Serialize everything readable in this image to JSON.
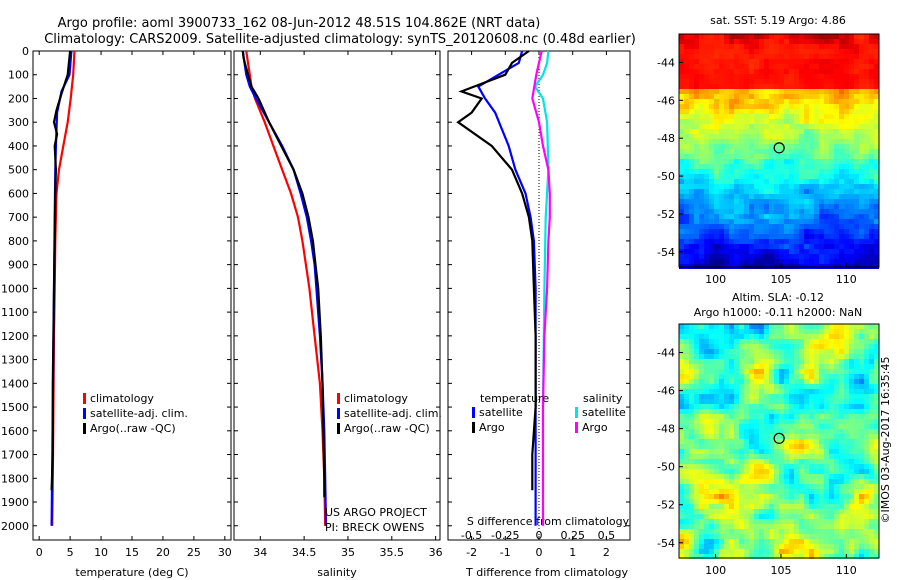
{
  "title_line1": "Argo profile: aoml 3900733_162 08-Jun-2012 48.51S 104.862E (NRT data)",
  "title_line2": "Climatology: CARS2009. Satellite-adjusted climatology: synTS_20120608.nc (0.48d earlier)",
  "watermark": "©IMOS 03-Aug-2017 16:35:45",
  "project_line1": "US ARGO PROJECT",
  "project_line2": "PI: BRECK OWENS",
  "colors": {
    "red": "#ff0000",
    "blue": "#0000ff",
    "black": "#000000",
    "cyan": "#00e5e5",
    "magenta": "#ff00ff"
  },
  "chart_data": [
    {
      "type": "line",
      "name": "temperature",
      "xlabel": "temperature (deg C)",
      "ylabel": "",
      "xlim": [
        -1,
        31
      ],
      "ylim": [
        2060,
        0
      ],
      "xticks": [
        0,
        5,
        10,
        15,
        20,
        25,
        30
      ],
      "yticks": [
        0,
        100,
        200,
        300,
        400,
        500,
        600,
        700,
        800,
        900,
        1000,
        1100,
        1200,
        1300,
        1400,
        1500,
        1600,
        1700,
        1800,
        1900,
        2000
      ],
      "legend": [
        "climatology",
        "satellite-adj. clim.",
        "Argo(..raw -QC)"
      ],
      "legend_placement": "lower-center",
      "series": [
        {
          "name": "climatology",
          "color": "red",
          "depth": [
            0,
            100,
            200,
            300,
            400,
            500,
            600,
            800,
            1000,
            1200,
            1500,
            1800,
            2000
          ],
          "values": [
            5.7,
            5.5,
            5.1,
            4.6,
            3.9,
            3.2,
            2.8,
            2.6,
            2.5,
            2.4,
            2.3,
            2.2,
            2.1
          ]
        },
        {
          "name": "satellite-adj. clim.",
          "color": "blue",
          "depth": [
            0,
            100,
            170,
            260,
            400,
            500,
            700,
            1000,
            1500,
            2000
          ],
          "values": [
            5.2,
            4.9,
            3.6,
            2.9,
            2.7,
            2.6,
            2.5,
            2.4,
            2.2,
            2.0
          ]
        },
        {
          "name": "Argo(..raw -QC)",
          "color": "black",
          "depth": [
            0,
            100,
            180,
            250,
            300,
            350,
            400,
            450,
            500,
            600,
            800,
            1000,
            1400,
            1700,
            1850
          ],
          "values": [
            5.0,
            4.6,
            3.6,
            2.8,
            2.4,
            2.9,
            2.5,
            2.6,
            2.7,
            2.6,
            2.5,
            2.4,
            2.2,
            2.2,
            2.0
          ]
        }
      ]
    },
    {
      "type": "line",
      "name": "salinity",
      "xlabel": "salinity",
      "ylabel": "",
      "xlim": [
        33.7,
        36.05
      ],
      "ylim": [
        2060,
        0
      ],
      "xticks": [
        34,
        34.5,
        35,
        35.5,
        36
      ],
      "xtick_labels": [
        "34",
        "34.5",
        "35",
        "35.5",
        "36"
      ],
      "legend": [
        "climatology",
        "satellite-adj. clim.",
        "Argo(..raw -QC)"
      ],
      "legend_placement": "lower-right",
      "series": [
        {
          "name": "climatology",
          "color": "red",
          "depth": [
            0,
            50,
            100,
            150,
            200,
            300,
            400,
            500,
            600,
            700,
            800,
            900,
            1000,
            1200,
            1400,
            1600,
            1800,
            2000
          ],
          "values": [
            33.84,
            33.86,
            33.88,
            33.9,
            33.94,
            34.05,
            34.15,
            34.25,
            34.35,
            34.43,
            34.48,
            34.52,
            34.56,
            34.62,
            34.68,
            34.71,
            34.73,
            34.74
          ]
        },
        {
          "name": "satellite-adj. clim.",
          "color": "blue",
          "depth": [
            0,
            50,
            100,
            150,
            200,
            300,
            400,
            500,
            600,
            700,
            800,
            900,
            1000,
            1200,
            1400,
            1600,
            1800,
            2000
          ],
          "values": [
            33.8,
            33.82,
            33.84,
            33.88,
            33.95,
            34.1,
            34.25,
            34.38,
            34.46,
            34.53,
            34.58,
            34.62,
            34.64,
            34.68,
            34.71,
            34.73,
            34.74,
            34.75
          ]
        },
        {
          "name": "Argo(..raw -QC)",
          "color": "black",
          "depth": [
            0,
            30,
            60,
            100,
            150,
            200,
            300,
            400,
            500,
            600,
            700,
            800,
            900,
            1000,
            1200,
            1400,
            1600,
            1800,
            1880
          ],
          "values": [
            33.8,
            33.81,
            33.83,
            33.86,
            33.9,
            33.98,
            34.1,
            34.24,
            34.38,
            34.48,
            34.55,
            34.6,
            34.63,
            34.66,
            34.69,
            34.71,
            34.72,
            34.73,
            34.73
          ]
        }
      ]
    },
    {
      "type": "line",
      "name": "difference",
      "xlabel": "T difference from climatology",
      "xlabel_top": "S difference from climatology",
      "xlim": [
        -2.7,
        2.7
      ],
      "ylim": [
        2060,
        0
      ],
      "xticks": [
        -2,
        -1,
        0,
        1,
        2
      ],
      "s_ticks": [
        -0.5,
        -0.25,
        0,
        0.25,
        0.5
      ],
      "s_tick_labels": [
        "-0.5",
        "-0.25",
        "0",
        "0.25",
        "0.5"
      ],
      "legend_titles": [
        "temperature",
        "salinity"
      ],
      "legend": [
        "satellite",
        "Argo",
        "satellite",
        "Argo"
      ],
      "legend_placement": "lower-center",
      "series": [
        {
          "name": "temperature satellite",
          "color": "blue",
          "depth": [
            0,
            50,
            100,
            150,
            200,
            260,
            400,
            500,
            600,
            700,
            800,
            1000,
            1200,
            1500,
            2000
          ],
          "values": [
            -0.5,
            -0.6,
            -1.2,
            -1.8,
            -1.6,
            -1.3,
            -0.9,
            -0.7,
            -0.4,
            -0.25,
            -0.15,
            -0.1,
            -0.1,
            -0.1,
            -0.1
          ]
        },
        {
          "name": "temperature Argo",
          "color": "black",
          "depth": [
            0,
            50,
            100,
            170,
            200,
            260,
            300,
            400,
            500,
            600,
            700,
            800,
            1000,
            1200,
            1500,
            1700,
            1850
          ],
          "values": [
            -0.3,
            -0.8,
            -1.0,
            -2.3,
            -1.7,
            -2.0,
            -2.4,
            -1.4,
            -0.8,
            -0.5,
            -0.3,
            -0.2,
            -0.15,
            -0.1,
            -0.1,
            -0.2,
            -0.2
          ]
        },
        {
          "name": "salinity satellite",
          "color": "cyan",
          "depth": [
            0,
            50,
            100,
            150,
            200,
            300,
            500,
            700,
            1000,
            1500,
            2000
          ],
          "values": [
            0.07,
            0.06,
            0.03,
            -0.03,
            0.03,
            0.06,
            0.07,
            0.05,
            0.04,
            0.03,
            0.03
          ]
        },
        {
          "name": "salinity Argo",
          "color": "magenta",
          "depth": [
            0,
            100,
            200,
            300,
            400,
            500,
            600,
            700,
            800,
            1000,
            1200,
            1500,
            2000
          ],
          "values": [
            0.02,
            -0.02,
            -0.05,
            0.0,
            0.03,
            0.07,
            0.08,
            0.08,
            0.07,
            0.06,
            0.04,
            0.03,
            0.03
          ]
        }
      ]
    },
    {
      "type": "heatmap",
      "name": "sst-map",
      "title": "sat. SST: 5.19 Argo: 4.86",
      "xlim": [
        97.2,
        112.5
      ],
      "ylim": [
        -54.8,
        -42.5
      ],
      "xticks": [
        100,
        105,
        110
      ],
      "yticks": [
        -44,
        -46,
        -48,
        -50,
        -52,
        -54
      ],
      "marker": {
        "lon": 104.862,
        "lat": -48.51
      }
    },
    {
      "type": "heatmap",
      "name": "sla-map",
      "title_line1": "Altim. SLA: -0.12",
      "title_line2": "Argo h1000: -0.11 h2000: NaN",
      "xlim": [
        97.2,
        112.5
      ],
      "ylim": [
        -54.8,
        -42.5
      ],
      "xticks": [
        100,
        105,
        110
      ],
      "yticks": [
        -44,
        -46,
        -48,
        -50,
        -52,
        -54
      ],
      "marker": {
        "lon": 104.862,
        "lat": -48.51
      }
    }
  ]
}
